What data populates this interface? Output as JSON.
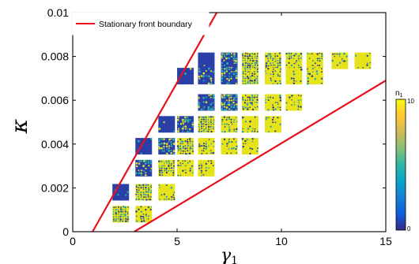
{
  "chart_data": {
    "type": "scatter",
    "title": "",
    "xlabel": "γ1",
    "ylabel": "κ",
    "xlim": [
      0,
      15
    ],
    "ylim": [
      0,
      0.01
    ],
    "x_ticks": [
      {
        "value": 0,
        "label": "0"
      },
      {
        "value": 5,
        "label": "5"
      },
      {
        "value": 10,
        "label": "10"
      },
      {
        "value": 15,
        "label": "15"
      }
    ],
    "y_ticks": [
      {
        "value": 0,
        "label": "0"
      },
      {
        "value": 0.002,
        "label": "0.002"
      },
      {
        "value": 0.004,
        "label": "0.004"
      },
      {
        "value": 0.006,
        "label": "0.006"
      },
      {
        "value": 0.008,
        "label": "0.008"
      },
      {
        "value": 0.01,
        "label": "0.01"
      }
    ],
    "grid": false,
    "legend_position": "top-left",
    "series": [
      {
        "name": "Stationary front boundary",
        "type": "line",
        "color": "#e8101c",
        "lines": [
          {
            "x": [
              0.95,
              6.9
            ],
            "y": [
              0,
              0.01
            ]
          },
          {
            "x": [
              2.95,
              15
            ],
            "y": [
              0,
              0.0069
            ]
          }
        ]
      }
    ],
    "pattern_grid": {
      "kappa_rows": [
        0.0078,
        0.0071,
        0.0059,
        0.0049,
        0.0039,
        0.0029,
        0.0018,
        0.0008
      ],
      "gamma_columns": [
        2.3,
        3.4,
        4.5,
        5.4,
        6.4,
        7.5,
        8.5,
        9.6,
        10.6,
        11.6,
        12.8,
        13.9
      ],
      "rows": [
        {
          "kappa": 0.0078,
          "gamma": [
            6.4,
            7.5,
            8.5,
            9.6,
            10.6,
            11.6,
            12.8,
            13.9
          ],
          "density": [
            0.05,
            0.3,
            0.5,
            0.68,
            0.78,
            0.85,
            0.9,
            0.94
          ]
        },
        {
          "kappa": 0.0071,
          "gamma": [
            5.4,
            6.4,
            7.5,
            8.5,
            9.6,
            10.6,
            11.6
          ],
          "density": [
            0.02,
            0.2,
            0.4,
            0.62,
            0.78,
            0.88,
            0.94
          ]
        },
        {
          "kappa": 0.0059,
          "gamma": [
            6.4,
            7.5,
            8.5,
            9.6,
            10.6
          ],
          "density": [
            0.25,
            0.45,
            0.7,
            0.85,
            0.93
          ]
        },
        {
          "kappa": 0.0049,
          "gamma": [
            4.5,
            5.4,
            6.4,
            7.5,
            8.5,
            9.6
          ],
          "density": [
            0.03,
            0.3,
            0.55,
            0.75,
            0.88,
            0.95
          ]
        },
        {
          "kappa": 0.0039,
          "gamma": [
            3.4,
            4.5,
            5.4,
            6.4,
            7.5,
            8.5
          ],
          "density": [
            0.02,
            0.35,
            0.62,
            0.82,
            0.92,
            0.95
          ]
        },
        {
          "kappa": 0.0029,
          "gamma": [
            3.4,
            4.5,
            5.4,
            6.4
          ],
          "density": [
            0.3,
            0.65,
            0.85,
            0.95
          ]
        },
        {
          "kappa": 0.0018,
          "gamma": [
            2.3,
            3.4,
            4.5
          ],
          "density": [
            0.05,
            0.55,
            0.85
          ]
        },
        {
          "kappa": 0.0008,
          "gamma": [
            2.3,
            3.4
          ],
          "density": [
            0.55,
            0.85
          ]
        }
      ]
    },
    "colorbar": {
      "label": "n1",
      "min_label": "0",
      "max_label": "10",
      "min": 0,
      "max": 10,
      "colormap": [
        "#352a87",
        "#0f5cdd",
        "#1481d6",
        "#06a4ca",
        "#2eb7a4",
        "#87bf77",
        "#d1bb59",
        "#fec832",
        "#f9fb0e"
      ]
    }
  }
}
